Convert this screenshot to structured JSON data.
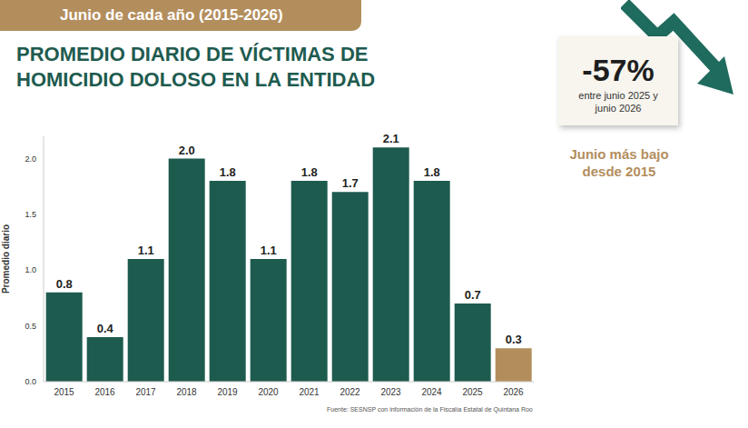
{
  "chart_data": {
    "type": "bar",
    "subtitle": "Junio de cada año (2015-2026)",
    "title": "PROMEDIO DIARIO DE VÍCTIMAS DE HOMICIDIO DOLOSO EN LA ENTIDAD",
    "y_label": "Promedio diario",
    "categories": [
      "2015",
      "2016",
      "2017",
      "2018",
      "2019",
      "2020",
      "2021",
      "2022",
      "2023",
      "2024",
      "2025",
      "2026"
    ],
    "values": [
      0.8,
      0.4,
      1.1,
      2.0,
      1.8,
      1.1,
      1.8,
      1.7,
      2.1,
      1.8,
      0.7,
      0.3
    ],
    "value_labels": [
      "0.8",
      "0.4",
      "1.1",
      "2.0",
      "1.8",
      "1.1",
      "1.8",
      "1.7",
      "2.1",
      "1.8",
      "0.7",
      "0.3"
    ],
    "colors": [
      "#1e5b4f",
      "#1e5b4f",
      "#1e5b4f",
      "#1e5b4f",
      "#1e5b4f",
      "#1e5b4f",
      "#1e5b4f",
      "#1e5b4f",
      "#1e5b4f",
      "#1e5b4f",
      "#1e5b4f",
      "#b38e5d"
    ],
    "ylim": [
      0,
      2.2
    ],
    "yticks": [
      {
        "value": 0,
        "label": "0.0"
      },
      0.5,
      {
        "value": 1,
        "label": "1.0"
      },
      1.5,
      {
        "value": 2,
        "label": "2.0"
      }
    ],
    "grid": false,
    "data_labels": true,
    "annotations": [
      "-57%",
      "entre junio 2025 y junio 2026",
      "Junio más bajo desde 2015",
      "Fuente: SESNSP con información de la Fiscalía Estatal de Quintana Roo"
    ]
  }
}
